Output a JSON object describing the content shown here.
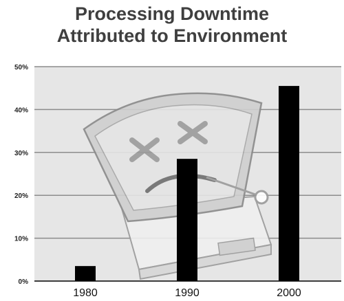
{
  "chart_data": {
    "type": "bar",
    "title": [
      "Processing Downtime",
      "Attributed to Environment"
    ],
    "categories": [
      "1980",
      "1990",
      "2000"
    ],
    "values": [
      3.5,
      28.5,
      45.5
    ],
    "ylim": [
      0,
      50
    ],
    "yticks": [
      "0%",
      "10%",
      "20%",
      "30%",
      "40%",
      "50%"
    ],
    "bar_color": "#000000",
    "plot_background": "#e6e6e6",
    "grid": true,
    "background_image": "sad-crashed-computer-illustration"
  }
}
